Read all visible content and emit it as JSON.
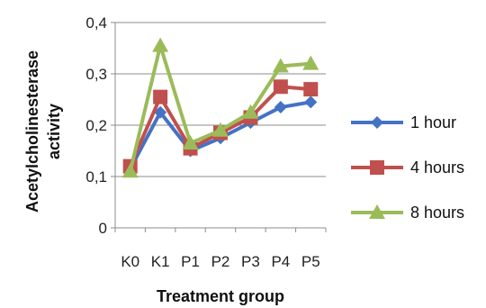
{
  "chart_data": {
    "type": "line",
    "title": "",
    "xlabel": "Treatment group",
    "ylabel": "Acetylcholinesterase activity",
    "ylabel_lines": [
      "Acetylcholinesterase",
      "activity"
    ],
    "categories": [
      "K0",
      "K1",
      "P1",
      "P2",
      "P3",
      "P4",
      "P5"
    ],
    "ylim": [
      0,
      0.4
    ],
    "yticks": [
      0,
      0.1,
      0.2,
      0.3,
      0.4
    ],
    "ytick_labels": [
      "0",
      "0,1",
      "0,2",
      "0,3",
      "0,4"
    ],
    "grid": true,
    "legend_position": "right",
    "series": [
      {
        "name": "1 hour",
        "values": [
          0.115,
          0.225,
          0.15,
          0.175,
          0.205,
          0.235,
          0.245
        ],
        "color": "#4472C4",
        "marker": "diamond"
      },
      {
        "name": "4 hours",
        "values": [
          0.12,
          0.255,
          0.155,
          0.185,
          0.215,
          0.275,
          0.27
        ],
        "color": "#C0504D",
        "marker": "square"
      },
      {
        "name": "8 hours",
        "values": [
          0.11,
          0.355,
          0.165,
          0.19,
          0.225,
          0.315,
          0.32
        ],
        "color": "#9BBB59",
        "marker": "triangle"
      }
    ]
  }
}
